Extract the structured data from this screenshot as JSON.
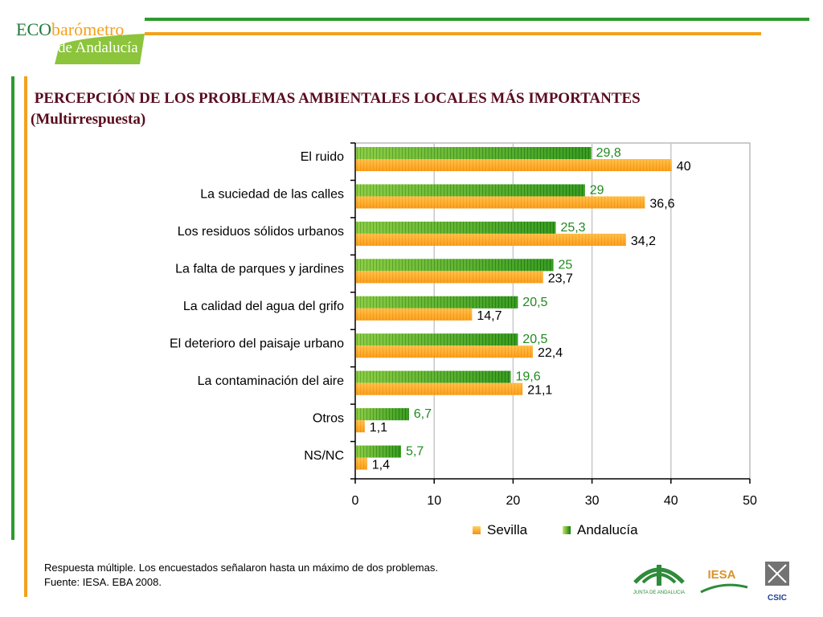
{
  "header": {
    "logo_line1_a": "ECO",
    "logo_line1_b": "barómetro",
    "logo_line2": "de Andalucía",
    "title_line1": " PERCEPCIÓN DE LOS PROBLEMAS AMBIENTALES LOCALES MÁS IMPORTANTES",
    "title_line2": "(Multirrespuesta)"
  },
  "chart_data": {
    "type": "bar",
    "orientation": "horizontal",
    "categories": [
      "El ruido",
      "La suciedad de las calles",
      "Los residuos sólidos urbanos",
      "La falta de parques y jardines",
      "La calidad del agua del grifo",
      "El deterioro del paisaje urbano",
      "La contaminación del aire",
      "Otros",
      "NS/NC"
    ],
    "series": [
      {
        "name": "Sevilla",
        "values": [
          40,
          36.6,
          34.2,
          23.7,
          14.7,
          22.4,
          21.1,
          1.1,
          1.4
        ],
        "labels": [
          "40",
          "36,6",
          "34,2",
          "23,7",
          "14,7",
          "22,4",
          "21,1",
          "1,1",
          "1,4"
        ],
        "color": "#f7a21a"
      },
      {
        "name": "Andalucía",
        "values": [
          29.8,
          29,
          25.3,
          25,
          20.5,
          20.5,
          19.6,
          6.7,
          5.7
        ],
        "labels": [
          "29,8",
          "29",
          "25,3",
          "25",
          "20,5",
          "20,5",
          "19,6",
          "6,7",
          "5,7"
        ],
        "color": "#3a9e1f"
      }
    ],
    "xticks": [
      "0",
      "10",
      "20",
      "30",
      "40",
      "50"
    ],
    "xlim": [
      0,
      50
    ],
    "grid": true,
    "legend": "bottom"
  },
  "footer": {
    "note_line1": "Respuesta múltiple. Los encuestados señalaron hasta un máximo de dos  problemas.",
    "note_line2": "Fuente: IESA. EBA 2008.",
    "logo_junta": "JUNTA DE ANDALUCIA",
    "logo_iesa": "IESA",
    "logo_csic": "CSIC"
  }
}
